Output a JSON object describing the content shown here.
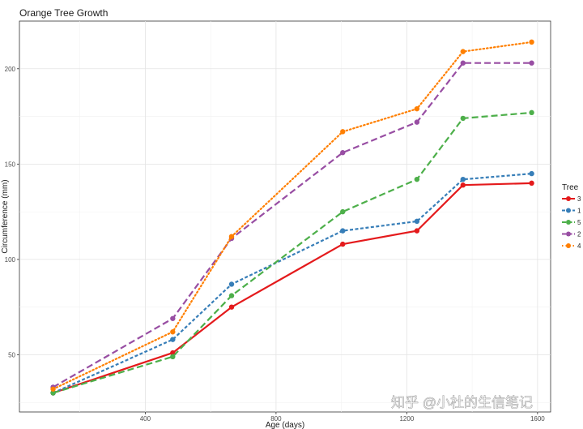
{
  "chart_data": {
    "type": "line",
    "title": "Orange Tree Growth",
    "xlabel": "Age (days)",
    "ylabel": "Circumference (mm)",
    "xlim": [
      15,
      1640
    ],
    "ylim": [
      20,
      225
    ],
    "x_ticks": [
      400,
      800,
      1200,
      1600
    ],
    "y_ticks": [
      50,
      100,
      150,
      200
    ],
    "grid": true,
    "legend": {
      "title": "Tree",
      "position": "right"
    },
    "x": [
      118,
      484,
      664,
      1004,
      1231,
      1372,
      1582
    ],
    "series": [
      {
        "name": "3",
        "color": "#e41a1c",
        "dash": "solid",
        "values": [
          30,
          51,
          75,
          108,
          115,
          139,
          140
        ]
      },
      {
        "name": "1",
        "color": "#377eb8",
        "dash": "dashed",
        "values": [
          30,
          58,
          87,
          115,
          120,
          142,
          145
        ]
      },
      {
        "name": "5",
        "color": "#4daf4a",
        "dash": "longdash",
        "values": [
          30,
          49,
          81,
          125,
          142,
          174,
          177
        ]
      },
      {
        "name": "2",
        "color": "#984ea3",
        "dash": "longdash",
        "values": [
          33,
          69,
          111,
          156,
          172,
          203,
          203
        ]
      },
      {
        "name": "4",
        "color": "#ff7f00",
        "dash": "dotted",
        "values": [
          32,
          62,
          112,
          167,
          179,
          209,
          214
        ]
      }
    ]
  },
  "watermark": "知乎 @小杜的生信笔记"
}
